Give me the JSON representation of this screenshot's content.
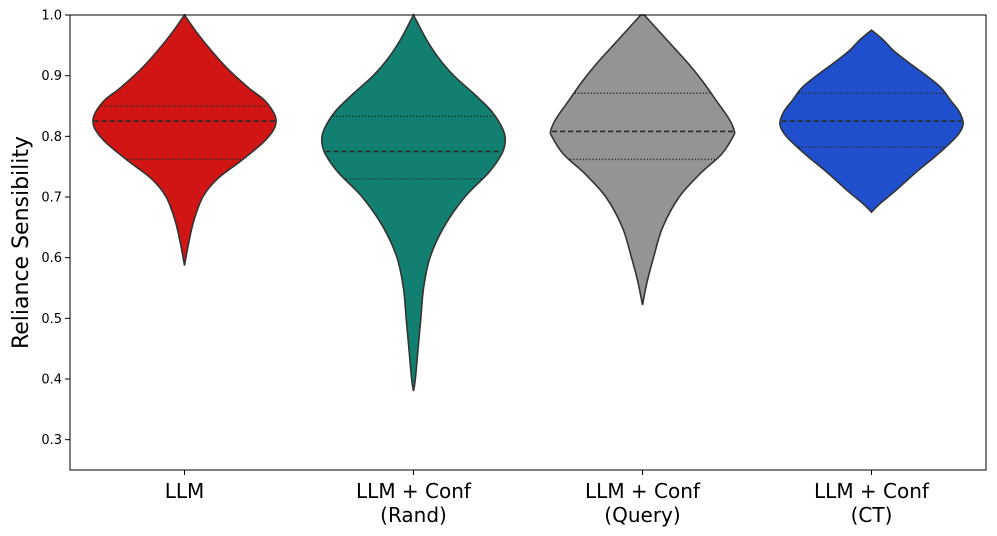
{
  "chart_data": {
    "type": "violin",
    "ylabel": "Reliance Sensibility",
    "xlabel": "",
    "ylim": [
      0.25,
      1.0
    ],
    "yticks": [
      "0.3",
      "0.4",
      "0.5",
      "0.6",
      "0.7",
      "0.8",
      "0.9",
      "1.0"
    ],
    "categories": [
      {
        "line1": "LLM",
        "line2": ""
      },
      {
        "line1": "LLM + Conf",
        "line2": "(Rand)"
      },
      {
        "line1": "LLM + Conf",
        "line2": "(Query)"
      },
      {
        "line1": "LLM + Conf",
        "line2": "(CT)"
      }
    ],
    "series": [
      {
        "color": "#d11515",
        "min": 0.587,
        "max": 1.0,
        "q1": 0.762,
        "median": 0.825,
        "q3": 0.85,
        "profile": [
          [
            0.587,
            0.0
          ],
          [
            0.62,
            0.04
          ],
          [
            0.66,
            0.1
          ],
          [
            0.7,
            0.2
          ],
          [
            0.73,
            0.36
          ],
          [
            0.76,
            0.62
          ],
          [
            0.79,
            0.86
          ],
          [
            0.81,
            0.97
          ],
          [
            0.825,
            1.0
          ],
          [
            0.84,
            0.97
          ],
          [
            0.86,
            0.87
          ],
          [
            0.88,
            0.7
          ],
          [
            0.91,
            0.48
          ],
          [
            0.94,
            0.3
          ],
          [
            0.97,
            0.14
          ],
          [
            1.0,
            0.0
          ]
        ]
      },
      {
        "color": "#128070",
        "min": 0.38,
        "max": 1.0,
        "q1": 0.73,
        "median": 0.775,
        "q3": 0.833,
        "profile": [
          [
            0.38,
            0.0
          ],
          [
            0.4,
            0.02
          ],
          [
            0.45,
            0.05
          ],
          [
            0.5,
            0.08
          ],
          [
            0.55,
            0.11
          ],
          [
            0.6,
            0.18
          ],
          [
            0.65,
            0.33
          ],
          [
            0.7,
            0.56
          ],
          [
            0.74,
            0.82
          ],
          [
            0.77,
            0.96
          ],
          [
            0.79,
            1.0
          ],
          [
            0.81,
            0.98
          ],
          [
            0.84,
            0.86
          ],
          [
            0.87,
            0.66
          ],
          [
            0.9,
            0.44
          ],
          [
            0.93,
            0.27
          ],
          [
            0.96,
            0.14
          ],
          [
            1.0,
            0.0
          ]
        ]
      },
      {
        "color": "#939593",
        "min": 0.522,
        "max": 1.0,
        "q1": 0.762,
        "median": 0.808,
        "q3": 0.871,
        "profile": [
          [
            0.522,
            0.0
          ],
          [
            0.56,
            0.05
          ],
          [
            0.6,
            0.12
          ],
          [
            0.65,
            0.22
          ],
          [
            0.7,
            0.4
          ],
          [
            0.74,
            0.64
          ],
          [
            0.77,
            0.86
          ],
          [
            0.8,
            0.99
          ],
          [
            0.81,
            1.0
          ],
          [
            0.83,
            0.94
          ],
          [
            0.86,
            0.8
          ],
          [
            0.89,
            0.66
          ],
          [
            0.92,
            0.5
          ],
          [
            0.95,
            0.32
          ],
          [
            0.98,
            0.14
          ],
          [
            1.0,
            0.02
          ]
        ]
      },
      {
        "color": "#1f4fcc",
        "min": 0.675,
        "max": 0.975,
        "q1": 0.782,
        "median": 0.825,
        "q3": 0.871,
        "profile": [
          [
            0.675,
            0.0
          ],
          [
            0.69,
            0.1
          ],
          [
            0.71,
            0.26
          ],
          [
            0.74,
            0.48
          ],
          [
            0.77,
            0.72
          ],
          [
            0.8,
            0.93
          ],
          [
            0.82,
            1.0
          ],
          [
            0.84,
            0.96
          ],
          [
            0.86,
            0.86
          ],
          [
            0.88,
            0.76
          ],
          [
            0.9,
            0.6
          ],
          [
            0.92,
            0.42
          ],
          [
            0.94,
            0.25
          ],
          [
            0.96,
            0.12
          ],
          [
            0.975,
            0.0
          ]
        ]
      }
    ]
  }
}
